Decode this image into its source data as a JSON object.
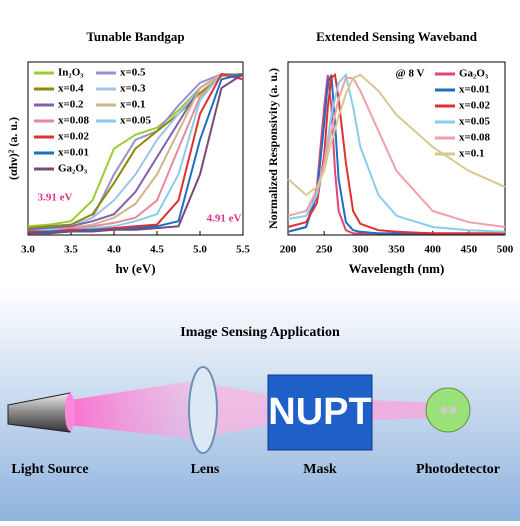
{
  "chart_data": [
    {
      "type": "line",
      "title": "Tunable Bandgap",
      "x_label": "hν (eV)",
      "y_label": "(αhν)² (a. u.)",
      "x": [
        3.0,
        3.25,
        3.5,
        3.75,
        4.0,
        4.25,
        4.5,
        4.75,
        5.0,
        5.25,
        5.5
      ],
      "xlim": [
        3,
        5.5
      ],
      "ylim": [
        0,
        1
      ],
      "xticks": [
        {
          "value": 3,
          "label": "3.0"
        },
        3.5,
        {
          "value": 4,
          "label": "4.0"
        },
        4.5,
        {
          "value": 5,
          "label": "5.0"
        },
        5.5
      ],
      "annotations": [
        "3.91 eV",
        "4.91 eV"
      ],
      "series": [
        {
          "name": "In₂O₃",
          "color": "#9acd32",
          "values": [
            0.05,
            0.06,
            0.08,
            0.2,
            0.5,
            0.58,
            0.62,
            0.72,
            0.85,
            0.93,
            0.93
          ]
        },
        {
          "name": "x=0.5",
          "color": "#9b8fd0",
          "values": [
            0.03,
            0.04,
            0.05,
            0.1,
            0.35,
            0.55,
            0.6,
            0.75,
            0.88,
            0.93,
            0.92
          ]
        },
        {
          "name": "x=0.4",
          "color": "#8b8b00",
          "values": [
            0.04,
            0.05,
            0.06,
            0.12,
            0.3,
            0.5,
            0.6,
            0.7,
            0.82,
            0.92,
            0.93
          ]
        },
        {
          "name": "x=0.3",
          "color": "#a0c4e8",
          "values": [
            0.03,
            0.04,
            0.05,
            0.1,
            0.2,
            0.35,
            0.55,
            0.7,
            0.85,
            0.93,
            0.92
          ]
        },
        {
          "name": "x=0.2",
          "color": "#8060b0",
          "values": [
            0.03,
            0.04,
            0.05,
            0.08,
            0.12,
            0.25,
            0.45,
            0.65,
            0.85,
            0.93,
            0.92
          ]
        },
        {
          "name": "x=0.1",
          "color": "#d2b48c",
          "values": [
            0.02,
            0.03,
            0.04,
            0.06,
            0.1,
            0.18,
            0.35,
            0.6,
            0.85,
            0.93,
            0.9
          ]
        },
        {
          "name": "x=0.08",
          "color": "#e88a9a",
          "values": [
            0.02,
            0.03,
            0.04,
            0.05,
            0.07,
            0.1,
            0.2,
            0.5,
            0.8,
            0.93,
            0.9
          ]
        },
        {
          "name": "x=0.05",
          "color": "#87ceeb",
          "values": [
            0.02,
            0.03,
            0.03,
            0.04,
            0.05,
            0.08,
            0.12,
            0.35,
            0.78,
            0.93,
            0.9
          ]
        },
        {
          "name": "x=0.02",
          "color": "#e03030",
          "values": [
            0.02,
            0.02,
            0.03,
            0.03,
            0.04,
            0.05,
            0.06,
            0.2,
            0.7,
            0.93,
            0.9
          ]
        },
        {
          "name": "x=0.01",
          "color": "#1e6fc0",
          "values": [
            0.01,
            0.02,
            0.02,
            0.03,
            0.03,
            0.04,
            0.05,
            0.08,
            0.55,
            0.9,
            0.93
          ]
        },
        {
          "name": "Ga₂O₃",
          "color": "#7a4a7a",
          "values": [
            0.01,
            0.01,
            0.02,
            0.02,
            0.03,
            0.03,
            0.04,
            0.05,
            0.35,
            0.85,
            0.93
          ]
        }
      ]
    },
    {
      "type": "line",
      "title": "Extended Sensing Waveband",
      "x_label": "Wavelength (nm)",
      "y_label": "Normalized Responsivity (a. u.)",
      "x": [
        200,
        225,
        240,
        250,
        255,
        260,
        265,
        270,
        280,
        290,
        300,
        325,
        350,
        400,
        450,
        500
      ],
      "xlim": [
        200,
        500
      ],
      "ylim": [
        0,
        1.08
      ],
      "xticks": [
        200,
        250,
        300,
        350,
        400,
        450,
        500
      ],
      "annotations": [
        "@ 8 V"
      ],
      "series": [
        {
          "name": "Ga₂O₃",
          "color": "#e0457a",
          "values": [
            0.02,
            0.05,
            0.3,
            0.8,
            1.0,
            0.8,
            0.4,
            0.15,
            0.03,
            0.01,
            0.01,
            0.01,
            0.01,
            0.01,
            0.01,
            0.01
          ]
        },
        {
          "name": "x=0.01",
          "color": "#1e6fc0",
          "values": [
            0.02,
            0.05,
            0.25,
            0.7,
            0.95,
            1.0,
            0.7,
            0.35,
            0.08,
            0.03,
            0.02,
            0.01,
            0.01,
            0.01,
            0.01,
            0.01
          ]
        },
        {
          "name": "x=0.02",
          "color": "#e03030",
          "values": [
            0.05,
            0.08,
            0.2,
            0.5,
            0.8,
            0.98,
            1.0,
            0.85,
            0.45,
            0.15,
            0.07,
            0.03,
            0.02,
            0.01,
            0.01,
            0.01
          ]
        },
        {
          "name": "x=0.05",
          "color": "#87ceeb",
          "values": [
            0.1,
            0.12,
            0.25,
            0.45,
            0.6,
            0.75,
            0.85,
            0.95,
            1.0,
            0.8,
            0.55,
            0.25,
            0.12,
            0.05,
            0.03,
            0.02
          ]
        },
        {
          "name": "x=0.08",
          "color": "#f0a0a8",
          "values": [
            0.12,
            0.15,
            0.28,
            0.45,
            0.55,
            0.65,
            0.75,
            0.85,
            0.98,
            0.98,
            0.9,
            0.65,
            0.4,
            0.15,
            0.08,
            0.05
          ]
        },
        {
          "name": "x=0.1",
          "color": "#d8c890",
          "values": [
            0.35,
            0.25,
            0.3,
            0.4,
            0.5,
            0.58,
            0.66,
            0.74,
            0.88,
            0.98,
            1.0,
            0.9,
            0.75,
            0.55,
            0.4,
            0.3
          ]
        }
      ]
    }
  ],
  "diagram": {
    "title": "Image Sensing Application",
    "mask_text": "NUPT",
    "labels": [
      "Light Source",
      "Lens",
      "Mask",
      "Photodetector"
    ]
  }
}
